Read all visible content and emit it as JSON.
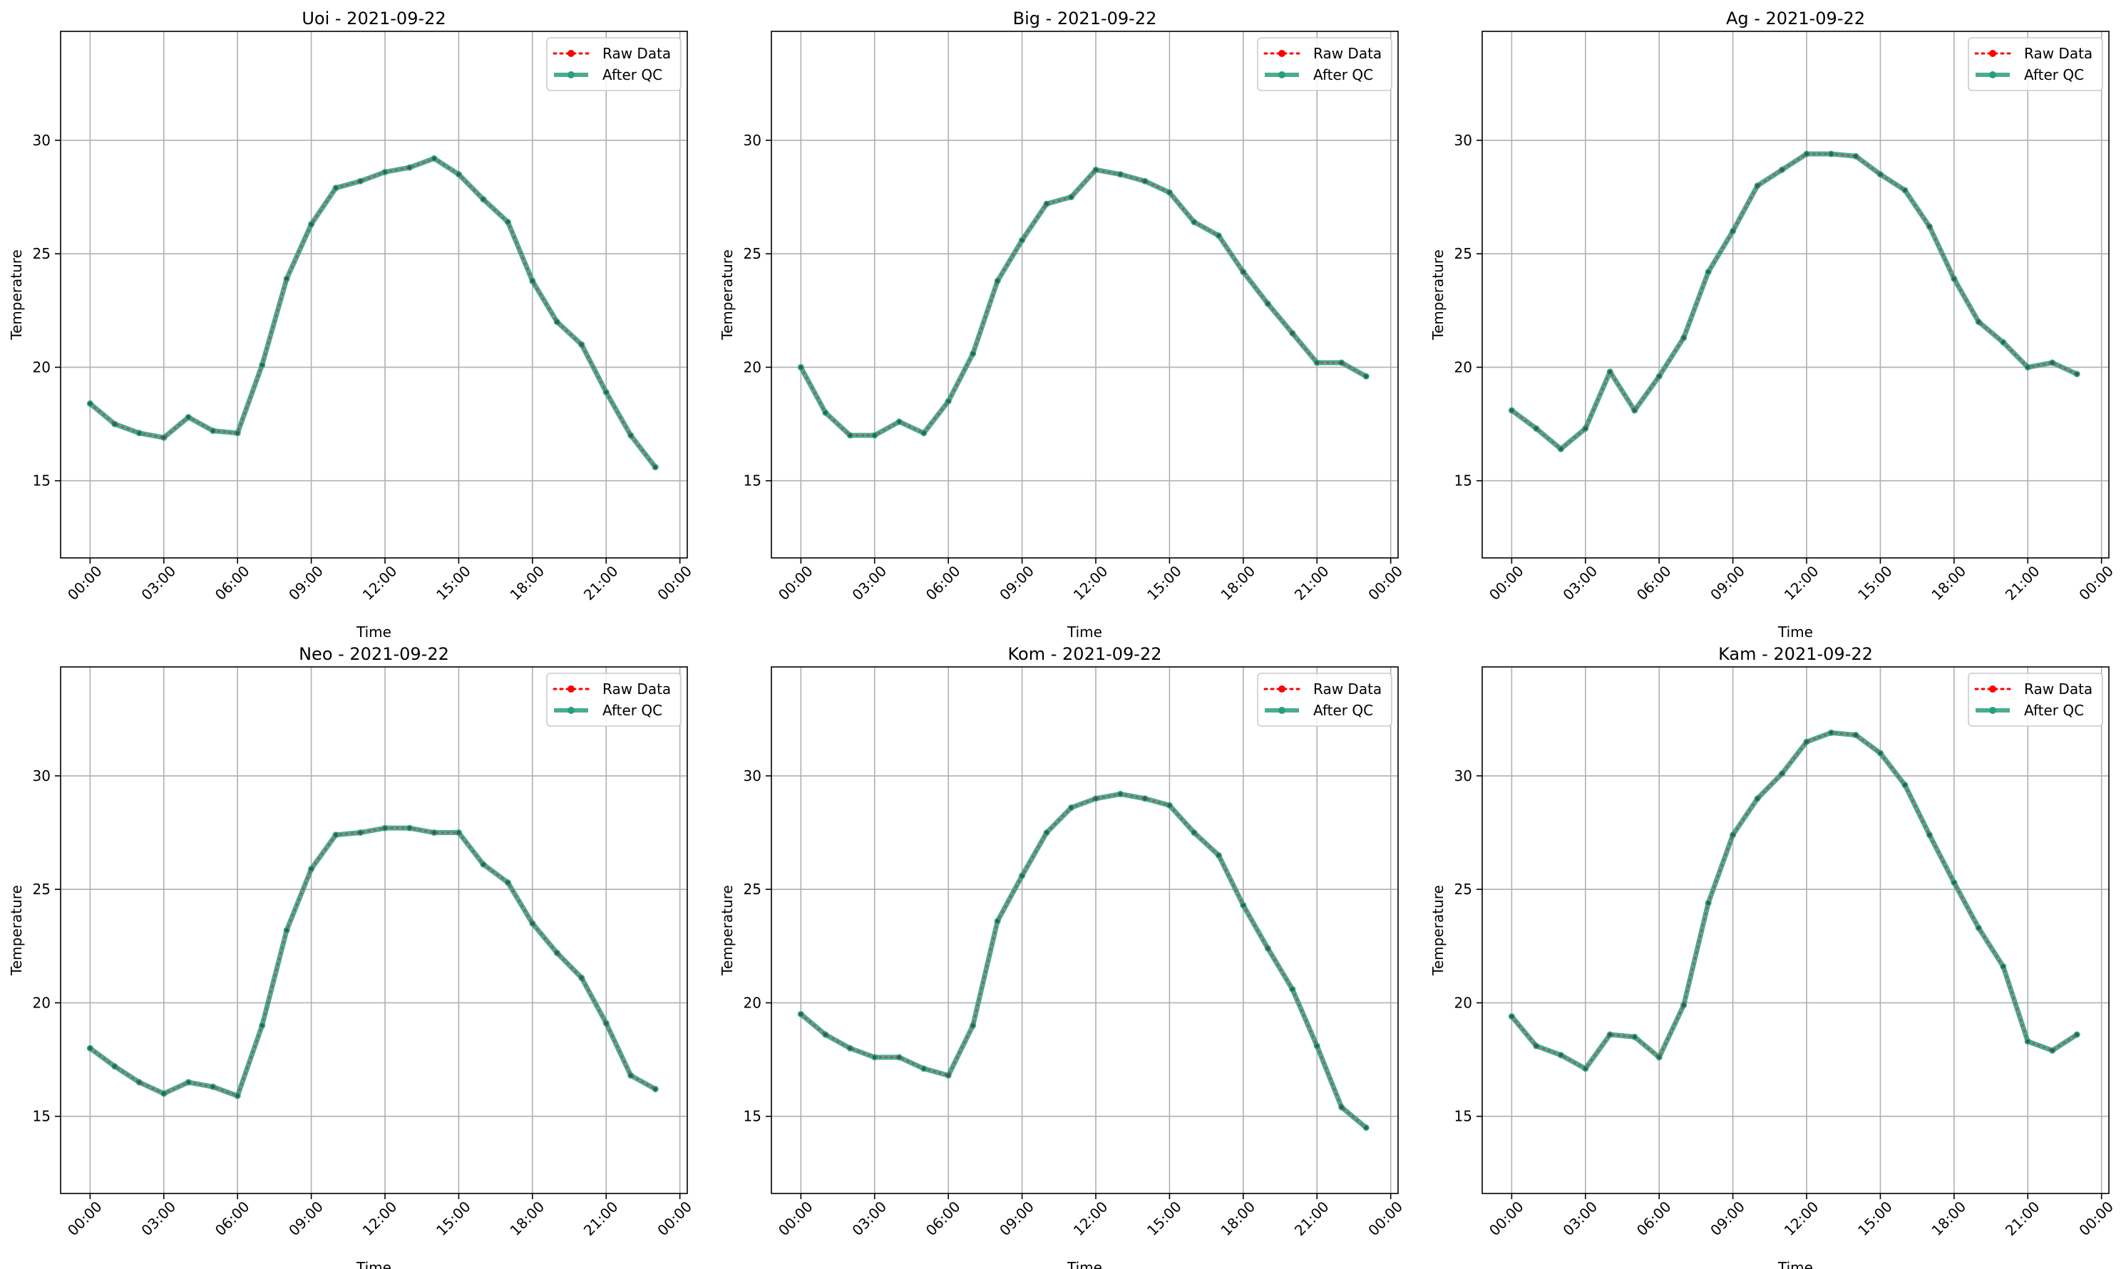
{
  "figure": {
    "legend_labels": {
      "raw": "Raw Data",
      "qc": "After QC"
    },
    "colors": {
      "raw": "#ff0000",
      "qc": "#2a9d7c",
      "grid": "#b0b0b0"
    }
  },
  "chart_data": [
    {
      "type": "line",
      "title": "Uoi - 2021-09-22",
      "xlabel": "Time",
      "ylabel": "Temperature",
      "x": [
        "00:00",
        "01:00",
        "02:00",
        "03:00",
        "04:00",
        "05:00",
        "06:00",
        "07:00",
        "08:00",
        "09:00",
        "10:00",
        "11:00",
        "12:00",
        "13:00",
        "14:00",
        "15:00",
        "16:00",
        "17:00",
        "18:00",
        "19:00",
        "20:00",
        "21:00",
        "22:00",
        "23:00"
      ],
      "xticks": [
        "00:00",
        "03:00",
        "06:00",
        "09:00",
        "12:00",
        "15:00",
        "18:00",
        "21:00",
        "00:00"
      ],
      "yticks": [
        15,
        20,
        25,
        30
      ],
      "ylim": [
        11.6,
        34.8
      ],
      "xlim_hours": [
        -1.2,
        24.3
      ],
      "grid": true,
      "legend": "top-right",
      "series": [
        {
          "name": "Raw Data",
          "values": [
            18.4,
            17.5,
            17.1,
            16.9,
            17.8,
            17.2,
            17.1,
            20.1,
            23.9,
            26.3,
            27.9,
            28.2,
            28.6,
            28.8,
            29.2,
            28.5,
            27.4,
            26.4,
            23.8,
            22.0,
            21.0,
            18.9,
            17.0,
            15.6
          ]
        },
        {
          "name": "After QC",
          "values": [
            18.4,
            17.5,
            17.1,
            16.9,
            17.8,
            17.2,
            17.1,
            20.1,
            23.9,
            26.3,
            27.9,
            28.2,
            28.6,
            28.8,
            29.2,
            28.5,
            27.4,
            26.4,
            23.8,
            22.0,
            21.0,
            18.9,
            17.0,
            15.6
          ]
        }
      ]
    },
    {
      "type": "line",
      "title": "Big - 2021-09-22",
      "xlabel": "Time",
      "ylabel": "Temperature",
      "x": [
        "00:00",
        "01:00",
        "02:00",
        "03:00",
        "04:00",
        "05:00",
        "06:00",
        "07:00",
        "08:00",
        "09:00",
        "10:00",
        "11:00",
        "12:00",
        "13:00",
        "14:00",
        "15:00",
        "16:00",
        "17:00",
        "18:00",
        "19:00",
        "20:00",
        "21:00",
        "22:00",
        "23:00"
      ],
      "xticks": [
        "00:00",
        "03:00",
        "06:00",
        "09:00",
        "12:00",
        "15:00",
        "18:00",
        "21:00",
        "00:00"
      ],
      "yticks": [
        15,
        20,
        25,
        30
      ],
      "ylim": [
        11.6,
        34.8
      ],
      "xlim_hours": [
        -1.2,
        24.3
      ],
      "grid": true,
      "legend": "top-right",
      "series": [
        {
          "name": "Raw Data",
          "values": [
            20.0,
            18.0,
            17.0,
            17.0,
            17.6,
            17.1,
            18.5,
            20.6,
            23.8,
            25.6,
            27.2,
            27.5,
            28.7,
            28.5,
            28.2,
            27.7,
            26.4,
            25.8,
            24.2,
            22.8,
            21.5,
            20.2,
            20.2,
            19.6
          ]
        },
        {
          "name": "After QC",
          "values": [
            20.0,
            18.0,
            17.0,
            17.0,
            17.6,
            17.1,
            18.5,
            20.6,
            23.8,
            25.6,
            27.2,
            27.5,
            28.7,
            28.5,
            28.2,
            27.7,
            26.4,
            25.8,
            24.2,
            22.8,
            21.5,
            20.2,
            20.2,
            19.6
          ]
        }
      ]
    },
    {
      "type": "line",
      "title": "Ag - 2021-09-22",
      "xlabel": "Time",
      "ylabel": "Temperature",
      "x": [
        "00:00",
        "01:00",
        "02:00",
        "03:00",
        "04:00",
        "05:00",
        "06:00",
        "07:00",
        "08:00",
        "09:00",
        "10:00",
        "11:00",
        "12:00",
        "13:00",
        "14:00",
        "15:00",
        "16:00",
        "17:00",
        "18:00",
        "19:00",
        "20:00",
        "21:00",
        "22:00",
        "23:00"
      ],
      "xticks": [
        "00:00",
        "03:00",
        "06:00",
        "09:00",
        "12:00",
        "15:00",
        "18:00",
        "21:00",
        "00:00"
      ],
      "yticks": [
        15,
        20,
        25,
        30
      ],
      "ylim": [
        11.6,
        34.8
      ],
      "xlim_hours": [
        -1.2,
        24.3
      ],
      "grid": true,
      "legend": "top-right",
      "series": [
        {
          "name": "Raw Data",
          "values": [
            18.1,
            17.3,
            16.4,
            17.3,
            19.8,
            18.1,
            19.6,
            21.3,
            24.2,
            26.0,
            28.0,
            28.7,
            29.4,
            29.4,
            29.3,
            28.5,
            27.8,
            26.2,
            23.9,
            22.0,
            21.1,
            20.0,
            20.2,
            19.7
          ]
        },
        {
          "name": "After QC",
          "values": [
            18.1,
            17.3,
            16.4,
            17.3,
            19.8,
            18.1,
            19.6,
            21.3,
            24.2,
            26.0,
            28.0,
            28.7,
            29.4,
            29.4,
            29.3,
            28.5,
            27.8,
            26.2,
            23.9,
            22.0,
            21.1,
            20.0,
            20.2,
            19.7
          ]
        }
      ]
    },
    {
      "type": "line",
      "title": "Neo - 2021-09-22",
      "xlabel": "Time",
      "ylabel": "Temperature",
      "x": [
        "00:00",
        "01:00",
        "02:00",
        "03:00",
        "04:00",
        "05:00",
        "06:00",
        "07:00",
        "08:00",
        "09:00",
        "10:00",
        "11:00",
        "12:00",
        "13:00",
        "14:00",
        "15:00",
        "16:00",
        "17:00",
        "18:00",
        "19:00",
        "20:00",
        "21:00",
        "22:00",
        "23:00"
      ],
      "xticks": [
        "00:00",
        "03:00",
        "06:00",
        "09:00",
        "12:00",
        "15:00",
        "18:00",
        "21:00",
        "00:00"
      ],
      "yticks": [
        15,
        20,
        25,
        30
      ],
      "ylim": [
        11.6,
        34.8
      ],
      "xlim_hours": [
        -1.2,
        24.3
      ],
      "grid": true,
      "legend": "top-right",
      "series": [
        {
          "name": "Raw Data",
          "values": [
            18.0,
            17.2,
            16.5,
            16.0,
            16.5,
            16.3,
            15.9,
            19.0,
            23.2,
            25.9,
            27.4,
            27.5,
            27.7,
            27.7,
            27.5,
            27.5,
            26.1,
            25.3,
            23.5,
            22.2,
            21.1,
            19.1,
            16.8,
            16.2
          ]
        },
        {
          "name": "After QC",
          "values": [
            18.0,
            17.2,
            16.5,
            16.0,
            16.5,
            16.3,
            15.9,
            19.0,
            23.2,
            25.9,
            27.4,
            27.5,
            27.7,
            27.7,
            27.5,
            27.5,
            26.1,
            25.3,
            23.5,
            22.2,
            21.1,
            19.1,
            16.8,
            16.2
          ]
        }
      ]
    },
    {
      "type": "line",
      "title": "Kom - 2021-09-22",
      "xlabel": "Time",
      "ylabel": "Temperature",
      "x": [
        "00:00",
        "01:00",
        "02:00",
        "03:00",
        "04:00",
        "05:00",
        "06:00",
        "07:00",
        "08:00",
        "09:00",
        "10:00",
        "11:00",
        "12:00",
        "13:00",
        "14:00",
        "15:00",
        "16:00",
        "17:00",
        "18:00",
        "19:00",
        "20:00",
        "21:00",
        "22:00",
        "23:00"
      ],
      "xticks": [
        "00:00",
        "03:00",
        "06:00",
        "09:00",
        "12:00",
        "15:00",
        "18:00",
        "21:00",
        "00:00"
      ],
      "yticks": [
        15,
        20,
        25,
        30
      ],
      "ylim": [
        11.6,
        34.8
      ],
      "xlim_hours": [
        -1.2,
        24.3
      ],
      "grid": true,
      "legend": "top-right",
      "series": [
        {
          "name": "Raw Data",
          "values": [
            19.5,
            18.6,
            18.0,
            17.6,
            17.6,
            17.1,
            16.8,
            19.0,
            23.6,
            25.6,
            27.5,
            28.6,
            29.0,
            29.2,
            29.0,
            28.7,
            27.5,
            26.5,
            24.3,
            22.4,
            20.6,
            18.1,
            15.4,
            14.5
          ]
        },
        {
          "name": "After QC",
          "values": [
            19.5,
            18.6,
            18.0,
            17.6,
            17.6,
            17.1,
            16.8,
            19.0,
            23.6,
            25.6,
            27.5,
            28.6,
            29.0,
            29.2,
            29.0,
            28.7,
            27.5,
            26.5,
            24.3,
            22.4,
            20.6,
            18.1,
            15.4,
            14.5
          ]
        }
      ]
    },
    {
      "type": "line",
      "title": "Kam - 2021-09-22",
      "xlabel": "Time",
      "ylabel": "Temperature",
      "x": [
        "00:00",
        "01:00",
        "02:00",
        "03:00",
        "04:00",
        "05:00",
        "06:00",
        "07:00",
        "08:00",
        "09:00",
        "10:00",
        "11:00",
        "12:00",
        "13:00",
        "14:00",
        "15:00",
        "16:00",
        "17:00",
        "18:00",
        "19:00",
        "20:00",
        "21:00",
        "22:00",
        "23:00"
      ],
      "xticks": [
        "00:00",
        "03:00",
        "06:00",
        "09:00",
        "12:00",
        "15:00",
        "18:00",
        "21:00",
        "00:00"
      ],
      "yticks": [
        15,
        20,
        25,
        30
      ],
      "ylim": [
        11.6,
        34.8
      ],
      "xlim_hours": [
        -1.2,
        24.3
      ],
      "grid": true,
      "legend": "top-right",
      "series": [
        {
          "name": "Raw Data",
          "values": [
            19.4,
            18.1,
            17.7,
            17.1,
            18.6,
            18.5,
            17.6,
            19.9,
            24.4,
            27.4,
            29.0,
            30.1,
            31.5,
            31.9,
            31.8,
            31.0,
            29.6,
            27.4,
            25.3,
            23.3,
            21.6,
            18.3,
            17.9,
            18.6
          ]
        },
        {
          "name": "After QC",
          "values": [
            19.4,
            18.1,
            17.7,
            17.1,
            18.6,
            18.5,
            17.6,
            19.9,
            24.4,
            27.4,
            29.0,
            30.1,
            31.5,
            31.9,
            31.8,
            31.0,
            29.6,
            27.4,
            25.3,
            23.3,
            21.6,
            18.3,
            17.9,
            18.6
          ]
        }
      ]
    }
  ]
}
